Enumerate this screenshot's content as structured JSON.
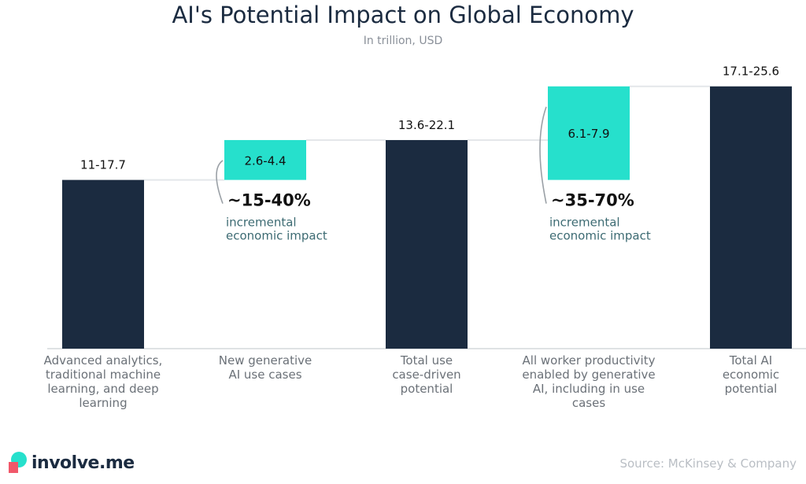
{
  "header": {
    "title": "AI's Potential Impact on Global Economy",
    "subtitle": "In trillion, USD"
  },
  "chart_data": {
    "type": "bar",
    "subtype": "waterfall",
    "unit": "trillion USD",
    "categories": [
      "Advanced analytics, traditional machine learning, and deep learning",
      "New generative AI use cases",
      "Total use case-driven potential",
      "All worker productivity enabled by generative AI, including in use cases",
      "Total AI economic potential"
    ],
    "category_lines": [
      [
        "Advanced analytics,",
        "traditional machine",
        "learning, and deep",
        "learning"
      ],
      [
        "New generative",
        "AI use cases"
      ],
      [
        "Total use",
        "case-driven",
        "potential"
      ],
      [
        "All worker productivity",
        "enabled by generative",
        "AI, including in use",
        "cases"
      ],
      [
        "Total AI",
        "economic",
        "potential"
      ]
    ],
    "bars": [
      {
        "label": "11-17.7",
        "kind": "total",
        "start": 0,
        "end": 11
      },
      {
        "label": "2.6-4.4",
        "kind": "increment",
        "start": 11,
        "end": 13.6
      },
      {
        "label": "13.6-22.1",
        "kind": "total",
        "start": 0,
        "end": 13.6
      },
      {
        "label": "6.1-7.9",
        "kind": "increment",
        "start": 11,
        "end": 17.1
      },
      {
        "label": "17.1-25.6",
        "kind": "total",
        "start": 0,
        "end": 17.1
      }
    ],
    "annotations": [
      {
        "bar": 1,
        "value": "~15-40%",
        "text": [
          "incremental",
          "economic impact"
        ]
      },
      {
        "bar": 3,
        "value": "~35-70%",
        "text": [
          "incremental",
          "economic impact"
        ]
      }
    ],
    "ylim": [
      0,
      17.6
    ],
    "y_axis_visible": false,
    "colors": {
      "total": "#1b2b40",
      "increment": "#26e0cc",
      "annotation_text": "#3d6b73",
      "axis": "#bfc4c8",
      "connector": "#e4e7ea"
    }
  },
  "footer": {
    "brand": "involve.me",
    "source": "Source: McKinsey & Company"
  }
}
